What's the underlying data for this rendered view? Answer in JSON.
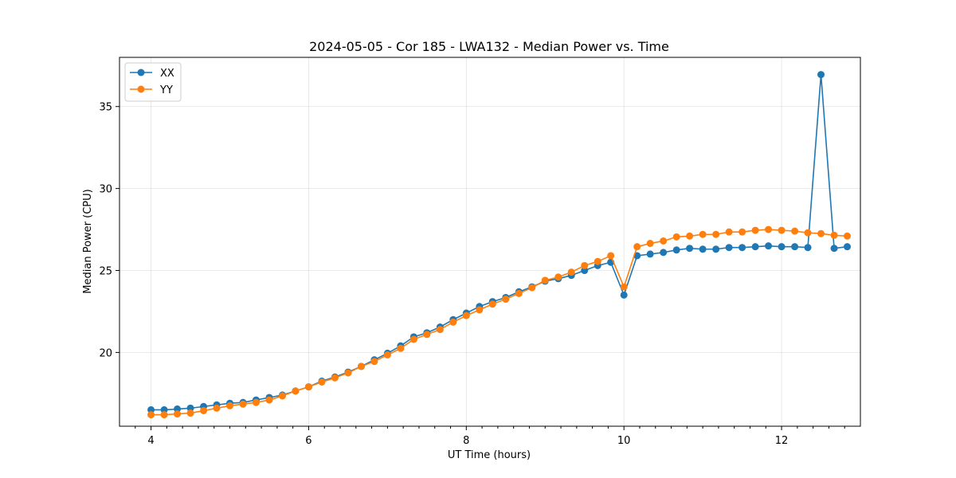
{
  "chart_data": {
    "type": "line",
    "title": "2024-05-05 - Cor 185 - LWA132 - Median Power vs. Time",
    "xlabel": "UT Time (hours)",
    "ylabel": "Median Power (CPU)",
    "xlim": [
      3.6,
      13.0
    ],
    "ylim": [
      15.5,
      38.0
    ],
    "xticks": [
      4,
      6,
      8,
      10,
      12
    ],
    "xticks_minor": [
      3.8,
      4.2,
      4.4,
      4.6,
      4.8,
      5.0,
      5.2,
      5.4,
      5.6,
      5.8,
      6.2,
      6.4,
      6.6,
      6.8,
      7.0,
      7.2,
      7.4,
      7.6,
      7.8,
      8.2,
      8.4,
      8.6,
      8.8,
      9.0,
      9.2,
      9.4,
      9.6,
      9.8,
      10.2,
      10.4,
      10.6,
      10.8,
      11.0,
      11.2,
      11.4,
      11.6,
      11.8,
      12.2,
      12.4,
      12.6,
      12.8
    ],
    "yticks": [
      20,
      25,
      30,
      35
    ],
    "grid": true,
    "legend_position": "top-left",
    "series": [
      {
        "name": "XX",
        "color": "#1f77b4",
        "x": [
          4.0,
          4.167,
          4.333,
          4.5,
          4.667,
          4.833,
          5.0,
          5.167,
          5.333,
          5.5,
          5.667,
          5.833,
          6.0,
          6.167,
          6.333,
          6.5,
          6.667,
          6.833,
          7.0,
          7.167,
          7.333,
          7.5,
          7.667,
          7.833,
          8.0,
          8.167,
          8.333,
          8.5,
          8.667,
          8.833,
          9.0,
          9.167,
          9.333,
          9.5,
          9.667,
          9.833,
          10.0,
          10.167,
          10.333,
          10.5,
          10.667,
          10.833,
          11.0,
          11.167,
          11.333,
          11.5,
          11.667,
          11.833,
          12.0,
          12.167,
          12.333,
          12.5,
          12.667,
          12.833
        ],
        "y": [
          16.5,
          16.5,
          16.55,
          16.6,
          16.7,
          16.8,
          16.9,
          16.95,
          17.1,
          17.25,
          17.4,
          17.65,
          17.9,
          18.25,
          18.5,
          18.8,
          19.15,
          19.55,
          19.95,
          20.4,
          20.95,
          21.2,
          21.55,
          22.0,
          22.4,
          22.8,
          23.1,
          23.35,
          23.7,
          24.0,
          24.35,
          24.5,
          24.7,
          25.0,
          25.3,
          25.5,
          23.5,
          25.9,
          26.0,
          26.1,
          26.25,
          26.35,
          26.3,
          26.3,
          26.4,
          26.4,
          26.45,
          26.5,
          26.45,
          26.45,
          26.4,
          36.95,
          26.35,
          26.45
        ]
      },
      {
        "name": "YY",
        "color": "#ff7f0e",
        "x": [
          4.0,
          4.167,
          4.333,
          4.5,
          4.667,
          4.833,
          5.0,
          5.167,
          5.333,
          5.5,
          5.667,
          5.833,
          6.0,
          6.167,
          6.333,
          6.5,
          6.667,
          6.833,
          7.0,
          7.167,
          7.333,
          7.5,
          7.667,
          7.833,
          8.0,
          8.167,
          8.333,
          8.5,
          8.667,
          8.833,
          9.0,
          9.167,
          9.333,
          9.5,
          9.667,
          9.833,
          10.0,
          10.167,
          10.333,
          10.5,
          10.667,
          10.833,
          11.0,
          11.167,
          11.333,
          11.5,
          11.667,
          11.833,
          12.0,
          12.167,
          12.333,
          12.5,
          12.667,
          12.833
        ],
        "y": [
          16.2,
          16.2,
          16.25,
          16.3,
          16.45,
          16.6,
          16.75,
          16.85,
          16.95,
          17.1,
          17.35,
          17.65,
          17.9,
          18.2,
          18.45,
          18.75,
          19.15,
          19.45,
          19.85,
          20.25,
          20.8,
          21.1,
          21.4,
          21.85,
          22.25,
          22.6,
          22.95,
          23.25,
          23.6,
          23.95,
          24.4,
          24.6,
          24.9,
          25.3,
          25.55,
          25.9,
          24.0,
          26.45,
          26.65,
          26.8,
          27.05,
          27.1,
          27.2,
          27.2,
          27.35,
          27.35,
          27.45,
          27.5,
          27.45,
          27.4,
          27.3,
          27.25,
          27.15,
          27.1
        ]
      }
    ]
  }
}
